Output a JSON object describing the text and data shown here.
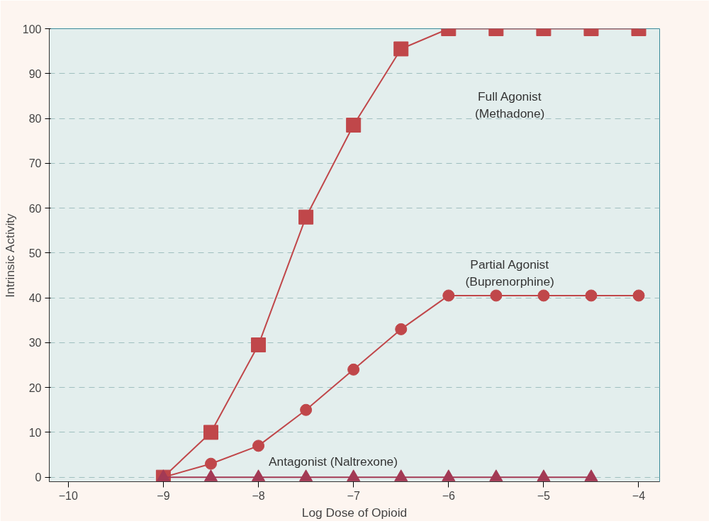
{
  "chart_data": {
    "type": "line",
    "xlabel": "Log Dose of Opioid",
    "ylabel": "Intrinsic Activity",
    "xlim": [
      -10.2,
      -3.78
    ],
    "ylim": [
      -1,
      100
    ],
    "xticks": [
      -10,
      -9,
      -8,
      -7,
      -6,
      -5,
      -4
    ],
    "yticks": [
      0,
      10,
      20,
      30,
      40,
      50,
      60,
      70,
      80,
      90,
      100
    ],
    "grid": "y",
    "series": [
      {
        "color": "#c0474a",
        "marker": "square",
        "x": [
          -9,
          -8.5,
          -8,
          -7.5,
          -7,
          -6.5,
          -6,
          -5.5,
          -5,
          -4.5,
          -4
        ],
        "values": [
          0,
          10,
          29.5,
          58,
          78.5,
          95.5,
          100,
          100,
          100,
          100,
          100
        ]
      },
      {
        "color": "#c0474a",
        "marker": "circle",
        "x": [
          -9,
          -8.5,
          -8,
          -7.5,
          -7,
          -6.5,
          -6,
          -5.5,
          -5,
          -4.5,
          -4
        ],
        "values": [
          0,
          3,
          7,
          15,
          24,
          33,
          40.5,
          40.5,
          40.5,
          40.5,
          40.5
        ]
      },
      {
        "color": "#a33a55",
        "marker": "triangle",
        "x": [
          -9,
          -8.5,
          -8,
          -7.5,
          -7,
          -6.5,
          -6,
          -5.5,
          -5,
          -4.5
        ],
        "values": [
          0,
          0,
          0,
          0,
          0,
          0,
          0,
          0,
          0,
          0
        ]
      }
    ],
    "annotations": [
      "Full Agonist\n(Methadone)",
      "Partial Agonist\n(Buprenorphine)",
      "Antagonist (Naltrexone)"
    ]
  }
}
